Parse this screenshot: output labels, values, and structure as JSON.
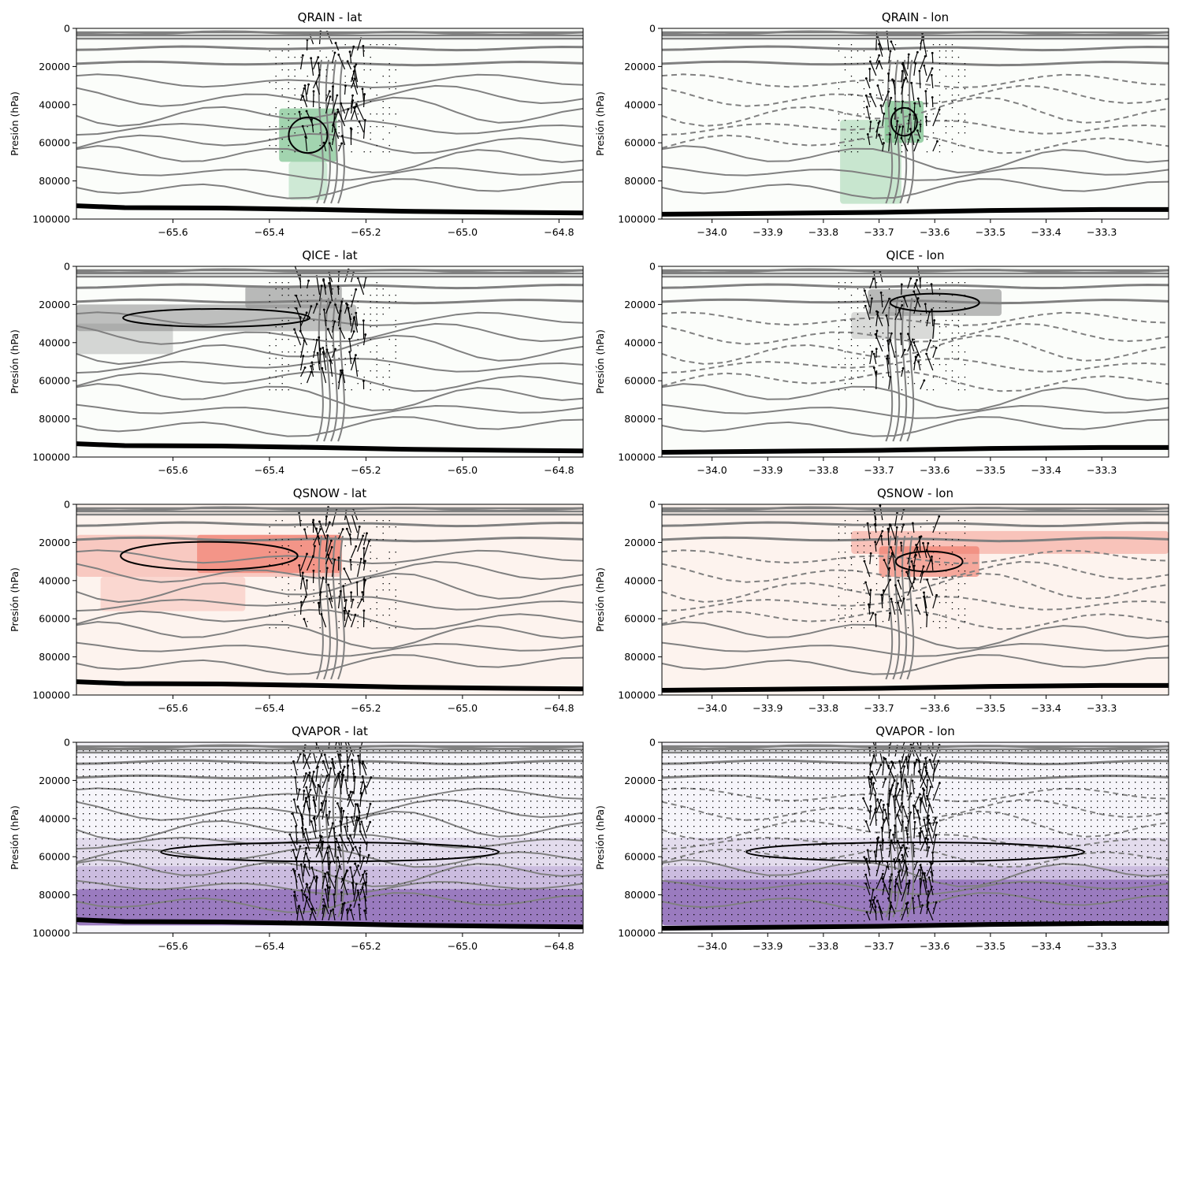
{
  "figure": {
    "background": "#ffffff",
    "contour_color": "#808080",
    "vector_color": "#000000",
    "terrain_color": "#000000"
  },
  "chart_data": [
    {
      "type": "heatmap",
      "title": "QRAIN - lat",
      "xlabel": "",
      "ylabel": "Presión (hPa)",
      "xlim": [
        -65.8,
        -64.75
      ],
      "ylim": [
        100000,
        0
      ],
      "xticks": [
        -65.6,
        -65.4,
        -65.2,
        -65.0,
        -64.8
      ],
      "xtick_labels": [
        "−65.6",
        "−65.4",
        "−65.2",
        "−65.0",
        "−64.8"
      ],
      "yticks": [
        0,
        20000,
        40000,
        60000,
        80000,
        100000
      ],
      "ytick_labels": [
        "0",
        "20000",
        "40000",
        "60000",
        "80000",
        "100000"
      ],
      "colormap": "Greens",
      "shade_color": "#7cc28e",
      "shading": [
        {
          "x": [
            -65.38,
            -65.26
          ],
          "y": [
            42000,
            70000
          ],
          "intensity": 0.7
        },
        {
          "x": [
            -65.36,
            -65.28
          ],
          "y": [
            70000,
            90000
          ],
          "intensity": 0.35
        }
      ],
      "terrain": [
        [
          -65.8,
          93000
        ],
        [
          -65.7,
          94000
        ],
        [
          -65.5,
          94200
        ],
        [
          -65.3,
          95000
        ],
        [
          -65.1,
          96000
        ],
        [
          -64.9,
          96500
        ],
        [
          -64.75,
          96800
        ]
      ]
    },
    {
      "type": "heatmap",
      "title": "QRAIN - lon",
      "xlabel": "",
      "ylabel": "Presión (hPa)",
      "xlim": [
        -34.09,
        -33.18
      ],
      "ylim": [
        100000,
        0
      ],
      "xticks": [
        -34.0,
        -33.9,
        -33.8,
        -33.7,
        -33.6,
        -33.5,
        -33.4,
        -33.3
      ],
      "xtick_labels": [
        "−34.0",
        "−33.9",
        "−33.8",
        "−33.7",
        "−33.6",
        "−33.5",
        "−33.4",
        "−33.3"
      ],
      "yticks": [
        0,
        20000,
        40000,
        60000,
        80000,
        100000
      ],
      "ytick_labels": [
        "0",
        "20000",
        "40000",
        "60000",
        "80000",
        "100000"
      ],
      "colormap": "Greens",
      "shade_color": "#7cc28e",
      "shading": [
        {
          "x": [
            -33.69,
            -33.62
          ],
          "y": [
            38000,
            60000
          ],
          "intensity": 0.75
        },
        {
          "x": [
            -33.77,
            -33.66
          ],
          "y": [
            48000,
            92000
          ],
          "intensity": 0.4
        }
      ],
      "terrain": [
        [
          -34.09,
          97500
        ],
        [
          -33.9,
          97000
        ],
        [
          -33.7,
          96500
        ],
        [
          -33.5,
          95500
        ],
        [
          -33.3,
          95000
        ],
        [
          -33.18,
          95000
        ]
      ]
    },
    {
      "type": "heatmap",
      "title": "QICE - lat",
      "xlabel": "",
      "ylabel": "Presión (hPa)",
      "xlim": [
        -65.8,
        -64.75
      ],
      "ylim": [
        100000,
        0
      ],
      "xticks": [
        -65.6,
        -65.4,
        -65.2,
        -65.0,
        -64.8
      ],
      "xtick_labels": [
        "−65.6",
        "−65.4",
        "−65.2",
        "−65.0",
        "−64.8"
      ],
      "yticks": [
        0,
        20000,
        40000,
        60000,
        80000,
        100000
      ],
      "ytick_labels": [
        "0",
        "20000",
        "40000",
        "60000",
        "80000",
        "100000"
      ],
      "colormap": "Greys",
      "shade_color": "#8c8c8c",
      "shading": [
        {
          "x": [
            -65.8,
            -65.22
          ],
          "y": [
            20000,
            34000
          ],
          "intensity": 0.55
        },
        {
          "x": [
            -65.8,
            -65.6
          ],
          "y": [
            30000,
            46000
          ],
          "intensity": 0.35
        },
        {
          "x": [
            -65.45,
            -65.25
          ],
          "y": [
            10000,
            22000
          ],
          "intensity": 0.6
        }
      ],
      "terrain": [
        [
          -65.8,
          93000
        ],
        [
          -65.7,
          94000
        ],
        [
          -65.5,
          94200
        ],
        [
          -65.3,
          95000
        ],
        [
          -65.1,
          96000
        ],
        [
          -64.9,
          96500
        ],
        [
          -64.75,
          96800
        ]
      ]
    },
    {
      "type": "heatmap",
      "title": "QICE - lon",
      "xlabel": "",
      "ylabel": "Presión (hPa)",
      "xlim": [
        -34.09,
        -33.18
      ],
      "ylim": [
        100000,
        0
      ],
      "xticks": [
        -34.0,
        -33.9,
        -33.8,
        -33.7,
        -33.6,
        -33.5,
        -33.4,
        -33.3
      ],
      "xtick_labels": [
        "−34.0",
        "−33.9",
        "−33.8",
        "−33.7",
        "−33.6",
        "−33.5",
        "−33.4",
        "−33.3"
      ],
      "yticks": [
        0,
        20000,
        40000,
        60000,
        80000,
        100000
      ],
      "ytick_labels": [
        "0",
        "20000",
        "40000",
        "60000",
        "80000",
        "100000"
      ],
      "colormap": "Greys",
      "shade_color": "#8c8c8c",
      "shading": [
        {
          "x": [
            -33.72,
            -33.48
          ],
          "y": [
            12000,
            26000
          ],
          "intensity": 0.6
        },
        {
          "x": [
            -33.75,
            -33.6
          ],
          "y": [
            24000,
            38000
          ],
          "intensity": 0.3
        }
      ],
      "terrain": [
        [
          -34.09,
          97500
        ],
        [
          -33.9,
          97000
        ],
        [
          -33.7,
          96500
        ],
        [
          -33.5,
          95500
        ],
        [
          -33.3,
          95000
        ],
        [
          -33.18,
          95000
        ]
      ]
    },
    {
      "type": "heatmap",
      "title": "QSNOW - lat",
      "xlabel": "",
      "ylabel": "Presión (hPa)",
      "xlim": [
        -65.8,
        -64.75
      ],
      "ylim": [
        100000,
        0
      ],
      "xticks": [
        -65.6,
        -65.4,
        -65.2,
        -65.0,
        -64.8
      ],
      "xtick_labels": [
        "−65.6",
        "−65.4",
        "−65.2",
        "−65.0",
        "−64.8"
      ],
      "yticks": [
        0,
        20000,
        40000,
        60000,
        80000,
        100000
      ],
      "ytick_labels": [
        "0",
        "20000",
        "40000",
        "60000",
        "80000",
        "100000"
      ],
      "colormap": "Reds",
      "shade_color": "#ef6a5a",
      "background_tint": "#fdf3ee",
      "shading": [
        {
          "x": [
            -65.8,
            -65.25
          ],
          "y": [
            16000,
            38000
          ],
          "intensity": 0.3
        },
        {
          "x": [
            -65.55,
            -65.25
          ],
          "y": [
            16000,
            36000
          ],
          "intensity": 0.55
        },
        {
          "x": [
            -65.75,
            -65.45
          ],
          "y": [
            38000,
            56000
          ],
          "intensity": 0.2
        }
      ],
      "terrain": [
        [
          -65.8,
          93000
        ],
        [
          -65.7,
          94000
        ],
        [
          -65.5,
          94200
        ],
        [
          -65.3,
          95000
        ],
        [
          -65.1,
          96000
        ],
        [
          -64.9,
          96500
        ],
        [
          -64.75,
          96800
        ]
      ]
    },
    {
      "type": "heatmap",
      "title": "QSNOW - lon",
      "xlabel": "",
      "ylabel": "Presión (hPa)",
      "xlim": [
        -34.09,
        -33.18
      ],
      "ylim": [
        100000,
        0
      ],
      "xticks": [
        -34.0,
        -33.9,
        -33.8,
        -33.7,
        -33.6,
        -33.5,
        -33.4,
        -33.3
      ],
      "xtick_labels": [
        "−34.0",
        "−33.9",
        "−33.8",
        "−33.7",
        "−33.6",
        "−33.5",
        "−33.4",
        "−33.3"
      ],
      "yticks": [
        0,
        20000,
        40000,
        60000,
        80000,
        100000
      ],
      "ytick_labels": [
        "0",
        "20000",
        "40000",
        "60000",
        "80000",
        "100000"
      ],
      "colormap": "Reds",
      "shade_color": "#ef6a5a",
      "background_tint": "#fdf3ee",
      "shading": [
        {
          "x": [
            -33.7,
            -33.52
          ],
          "y": [
            22000,
            38000
          ],
          "intensity": 0.55
        },
        {
          "x": [
            -33.75,
            -33.18
          ],
          "y": [
            14000,
            26000
          ],
          "intensity": 0.35
        }
      ],
      "terrain": [
        [
          -34.09,
          97500
        ],
        [
          -33.9,
          97000
        ],
        [
          -33.7,
          96500
        ],
        [
          -33.5,
          95500
        ],
        [
          -33.3,
          95000
        ],
        [
          -33.18,
          95000
        ]
      ]
    },
    {
      "type": "heatmap",
      "title": "QVAPOR - lat",
      "xlabel": "",
      "ylabel": "Presión (hPa)",
      "xlim": [
        -65.8,
        -64.75
      ],
      "ylim": [
        100000,
        0
      ],
      "xticks": [
        -65.6,
        -65.4,
        -65.2,
        -65.0,
        -64.8
      ],
      "xtick_labels": [
        "−65.6",
        "−65.4",
        "−65.2",
        "−65.0",
        "−64.8"
      ],
      "yticks": [
        0,
        20000,
        40000,
        60000,
        80000,
        100000
      ],
      "ytick_labels": [
        "0",
        "20000",
        "40000",
        "60000",
        "80000",
        "100000"
      ],
      "colormap": "Purples",
      "shade_color": "#7b52ab",
      "background_tint": "#f6f5fa",
      "shading": [
        {
          "x": [
            -65.8,
            -64.75
          ],
          "y": [
            50000,
            65000
          ],
          "intensity": 0.15
        },
        {
          "x": [
            -65.8,
            -64.75
          ],
          "y": [
            65000,
            77000
          ],
          "intensity": 0.35
        },
        {
          "x": [
            -65.8,
            -64.75
          ],
          "y": [
            77000,
            96000
          ],
          "intensity": 0.75
        }
      ],
      "terrain": [
        [
          -65.8,
          93000
        ],
        [
          -65.7,
          94000
        ],
        [
          -65.5,
          94200
        ],
        [
          -65.3,
          95000
        ],
        [
          -65.1,
          96000
        ],
        [
          -64.9,
          96500
        ],
        [
          -64.75,
          96800
        ]
      ]
    },
    {
      "type": "heatmap",
      "title": "QVAPOR - lon",
      "xlabel": "",
      "ylabel": "Presión (hPa)",
      "xlim": [
        -34.09,
        -33.18
      ],
      "ylim": [
        100000,
        0
      ],
      "xticks": [
        -34.0,
        -33.9,
        -33.8,
        -33.7,
        -33.6,
        -33.5,
        -33.4,
        -33.3
      ],
      "xtick_labels": [
        "−34.0",
        "−33.9",
        "−33.8",
        "−33.7",
        "−33.6",
        "−33.5",
        "−33.4",
        "−33.3"
      ],
      "yticks": [
        0,
        20000,
        40000,
        60000,
        80000,
        100000
      ],
      "ytick_labels": [
        "0",
        "20000",
        "40000",
        "60000",
        "80000",
        "100000"
      ],
      "colormap": "Purples",
      "shade_color": "#7b52ab",
      "background_tint": "#f6f5fa",
      "shading": [
        {
          "x": [
            -34.09,
            -33.18
          ],
          "y": [
            50000,
            65000
          ],
          "intensity": 0.15
        },
        {
          "x": [
            -34.09,
            -33.18
          ],
          "y": [
            65000,
            72000
          ],
          "intensity": 0.35
        },
        {
          "x": [
            -34.09,
            -33.18
          ],
          "y": [
            72000,
            96000
          ],
          "intensity": 0.75
        }
      ],
      "terrain": [
        [
          -34.09,
          97500
        ],
        [
          -33.9,
          97000
        ],
        [
          -33.7,
          96500
        ],
        [
          -33.5,
          95500
        ],
        [
          -33.3,
          95000
        ],
        [
          -33.18,
          95000
        ]
      ]
    }
  ]
}
